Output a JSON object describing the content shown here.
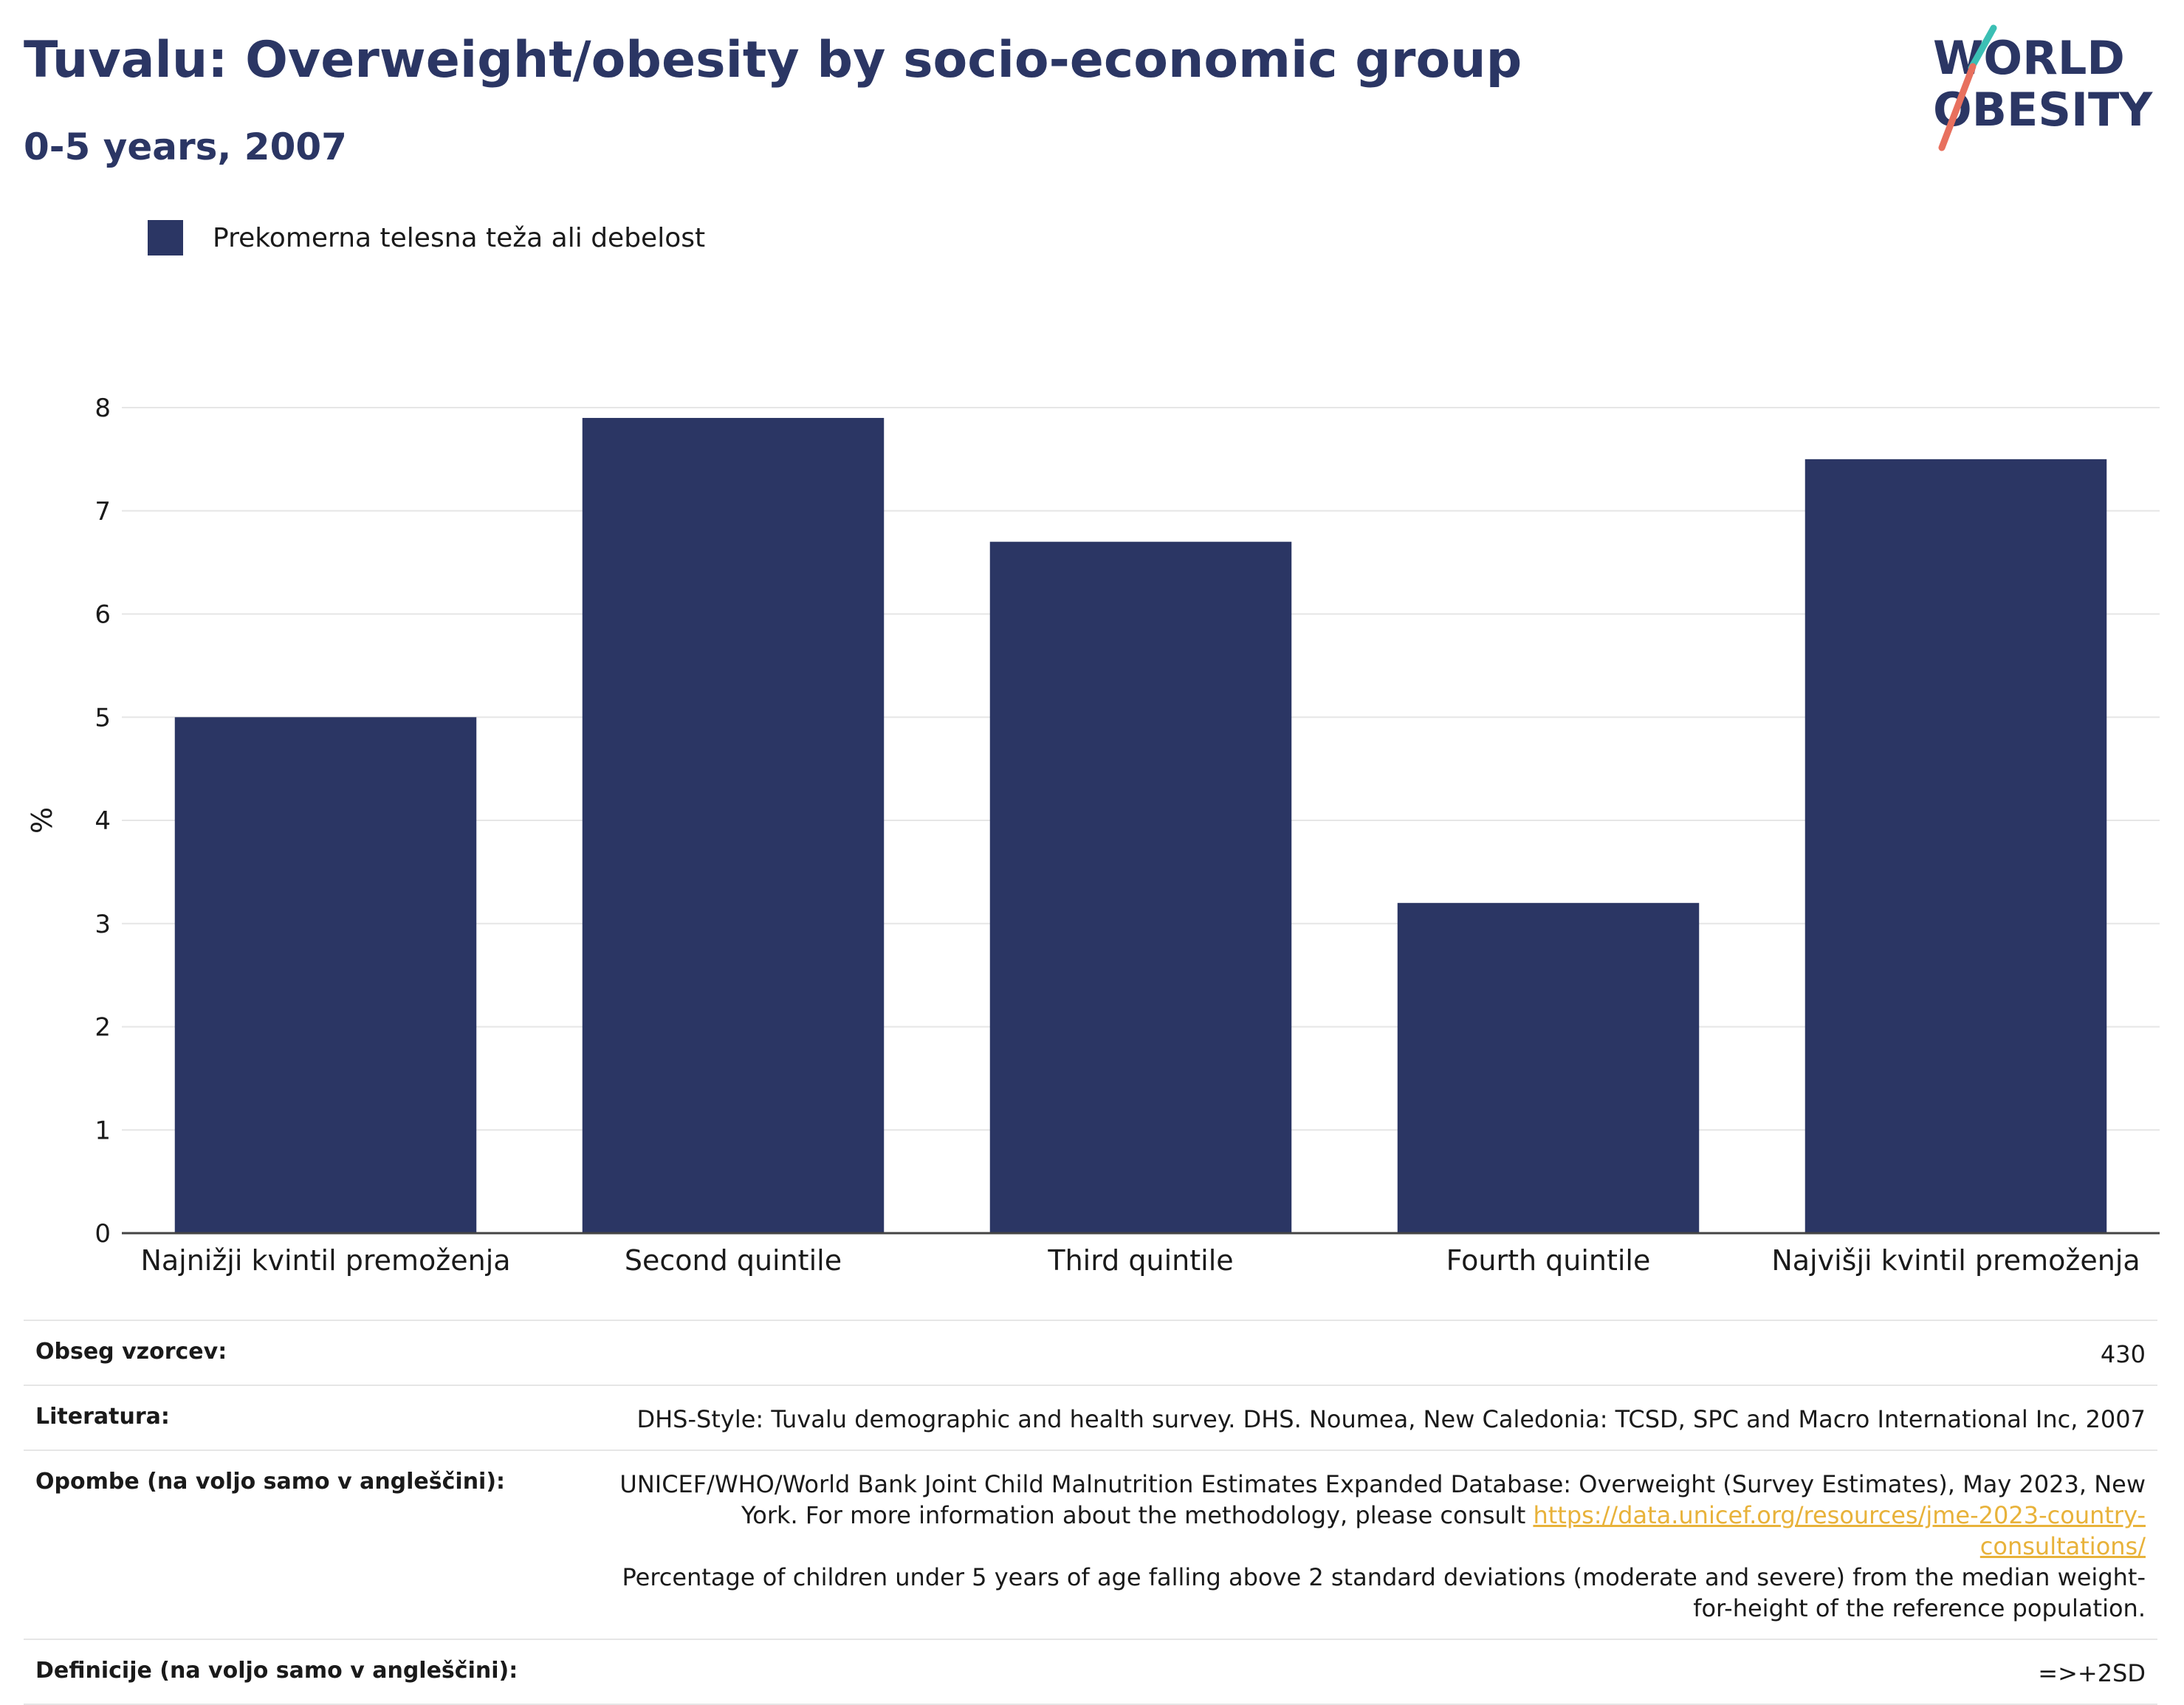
{
  "title": "Tuvalu: Overweight/obesity by socio-economic group",
  "subtitle": "0-5 years, 2007",
  "logo": {
    "line1": "WORLD",
    "line2": "OBESITY"
  },
  "colors": {
    "bar": "#2b3664",
    "title": "#2b3664",
    "link": "#e8b23a"
  },
  "chart_data": {
    "type": "bar",
    "categories": [
      "Najnižji kvintil premoženja",
      "Second quintile",
      "Third quintile",
      "Fourth quintile",
      "Najvišji kvintil premoženja"
    ],
    "series": [
      {
        "name": "Prekomerna telesna teža ali debelost",
        "values": [
          5.0,
          7.9,
          6.7,
          3.2,
          7.5
        ]
      }
    ],
    "ylabel": "%",
    "ylim": [
      0,
      8
    ],
    "yticks": [
      "0",
      "1",
      "2",
      "3",
      "4",
      "5",
      "6",
      "7",
      "8"
    ],
    "grid": true,
    "legend_position": "top-left"
  },
  "info": {
    "sample_label": "Obseg vzorcev:",
    "sample_value": "430",
    "source_label": "Literatura:",
    "source_value": "DHS-Style: Tuvalu demographic and health survey. DHS. Noumea, New Caledonia: TCSD, SPC and Macro International Inc, 2007",
    "notes_label": "Opombe (na voljo samo v angleščini):",
    "notes_text1": "UNICEF/WHO/World Bank Joint Child Malnutrition Estimates Expanded Database: Overweight (Survey Estimates), May 2023, New York. For more information about the methodology, please consult ",
    "notes_link": "https://data.unicef.org/resources/jme-2023-country-consultations/",
    "notes_text2": "Percentage of children under 5 years of age falling above 2 standard deviations (moderate and severe) from the median weight-for-height of the reference population.",
    "definitions_label": "Definicije (na voljo samo v angleščini):",
    "definitions_value": "=>+2SD"
  }
}
